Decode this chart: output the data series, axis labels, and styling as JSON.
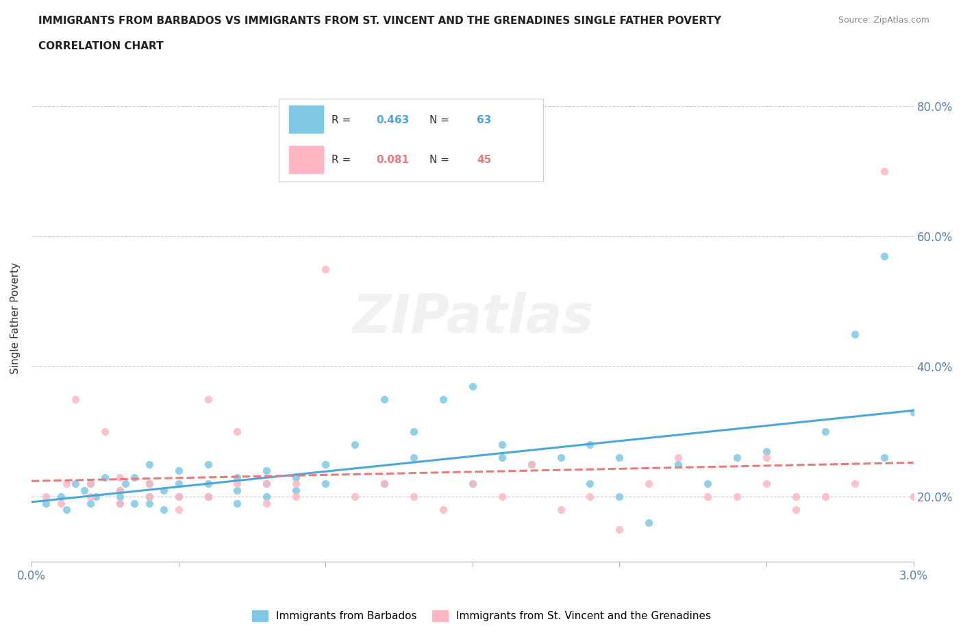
{
  "title_line1": "IMMIGRANTS FROM BARBADOS VS IMMIGRANTS FROM ST. VINCENT AND THE GRENADINES SINGLE FATHER POVERTY",
  "title_line2": "CORRELATION CHART",
  "source_text": "Source: ZipAtlas.com",
  "ylabel": "Single Father Poverty",
  "xlim": [
    0.0,
    0.03
  ],
  "ylim": [
    0.1,
    0.85
  ],
  "xticks": [
    0.0,
    0.005,
    0.01,
    0.015,
    0.02,
    0.025,
    0.03
  ],
  "xtick_labels": [
    "0.0%",
    "",
    "",
    "",
    "",
    "",
    "3.0%"
  ],
  "ytick_labels": [
    "20.0%",
    "40.0%",
    "60.0%",
    "80.0%"
  ],
  "ytick_values": [
    0.2,
    0.4,
    0.6,
    0.8
  ],
  "watermark": "ZIPatlas",
  "barbados_color": "#7ec8e3",
  "stvincent_color": "#ffb6c1",
  "barbados_line_color": "#4da6d9",
  "stvincent_line_color": "#e87a7a",
  "R_barbados": 0.463,
  "N_barbados": 63,
  "R_stvincent": 0.081,
  "N_stvincent": 45,
  "barbados_scatter_x": [
    0.0005,
    0.001,
    0.0012,
    0.0015,
    0.0018,
    0.002,
    0.002,
    0.0022,
    0.0025,
    0.003,
    0.003,
    0.003,
    0.0032,
    0.0035,
    0.0035,
    0.004,
    0.004,
    0.004,
    0.004,
    0.0045,
    0.0045,
    0.005,
    0.005,
    0.005,
    0.006,
    0.006,
    0.006,
    0.007,
    0.007,
    0.007,
    0.008,
    0.008,
    0.008,
    0.009,
    0.009,
    0.01,
    0.01,
    0.011,
    0.012,
    0.012,
    0.013,
    0.013,
    0.014,
    0.015,
    0.015,
    0.016,
    0.016,
    0.017,
    0.018,
    0.019,
    0.019,
    0.02,
    0.02,
    0.021,
    0.022,
    0.023,
    0.024,
    0.025,
    0.027,
    0.028,
    0.029,
    0.029,
    0.03
  ],
  "barbados_scatter_y": [
    0.19,
    0.2,
    0.18,
    0.22,
    0.21,
    0.19,
    0.22,
    0.2,
    0.23,
    0.19,
    0.21,
    0.2,
    0.22,
    0.19,
    0.23,
    0.2,
    0.22,
    0.25,
    0.19,
    0.21,
    0.18,
    0.22,
    0.2,
    0.24,
    0.2,
    0.22,
    0.25,
    0.21,
    0.19,
    0.23,
    0.2,
    0.22,
    0.24,
    0.21,
    0.23,
    0.22,
    0.25,
    0.28,
    0.35,
    0.22,
    0.26,
    0.3,
    0.35,
    0.37,
    0.22,
    0.26,
    0.28,
    0.25,
    0.26,
    0.28,
    0.22,
    0.26,
    0.2,
    0.16,
    0.25,
    0.22,
    0.26,
    0.27,
    0.3,
    0.45,
    0.57,
    0.26,
    0.33
  ],
  "stvincent_scatter_x": [
    0.0005,
    0.001,
    0.0012,
    0.0015,
    0.002,
    0.002,
    0.0025,
    0.003,
    0.003,
    0.003,
    0.004,
    0.004,
    0.005,
    0.005,
    0.006,
    0.006,
    0.007,
    0.007,
    0.008,
    0.008,
    0.009,
    0.009,
    0.01,
    0.011,
    0.012,
    0.013,
    0.014,
    0.015,
    0.016,
    0.017,
    0.018,
    0.019,
    0.02,
    0.021,
    0.022,
    0.023,
    0.024,
    0.025,
    0.025,
    0.026,
    0.026,
    0.027,
    0.028,
    0.029,
    0.03
  ],
  "stvincent_scatter_y": [
    0.2,
    0.19,
    0.22,
    0.35,
    0.2,
    0.22,
    0.3,
    0.19,
    0.21,
    0.23,
    0.22,
    0.2,
    0.18,
    0.2,
    0.35,
    0.2,
    0.22,
    0.3,
    0.19,
    0.22,
    0.2,
    0.22,
    0.55,
    0.2,
    0.22,
    0.2,
    0.18,
    0.22,
    0.2,
    0.25,
    0.18,
    0.2,
    0.15,
    0.22,
    0.26,
    0.2,
    0.2,
    0.22,
    0.26,
    0.2,
    0.18,
    0.2,
    0.22,
    0.7,
    0.2
  ],
  "legend_label_barbados": "Immigrants from Barbados",
  "legend_label_stvincent": "Immigrants from St. Vincent and the Grenadines"
}
